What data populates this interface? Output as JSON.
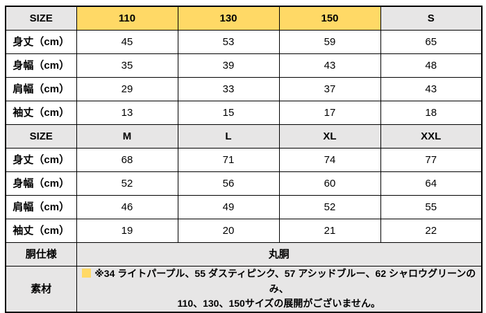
{
  "colors": {
    "highlight_yellow": "#FFD966",
    "header_gray": "#E7E6E6",
    "border": "#000000",
    "text": "#000000"
  },
  "table": {
    "rows": [
      {
        "type": "size-header",
        "label": "SIZE",
        "values": [
          "110",
          "130",
          "150",
          "S"
        ]
      },
      {
        "type": "measure",
        "label": "身丈（cm）",
        "values": [
          "45",
          "53",
          "59",
          "65"
        ]
      },
      {
        "type": "measure",
        "label": "身幅（cm）",
        "values": [
          "35",
          "39",
          "43",
          "48"
        ]
      },
      {
        "type": "measure",
        "label": "肩幅（cm）",
        "values": [
          "29",
          "33",
          "37",
          "43"
        ]
      },
      {
        "type": "measure",
        "label": "袖丈（cm）",
        "values": [
          "13",
          "15",
          "17",
          "18"
        ]
      },
      {
        "type": "size-header",
        "label": "SIZE",
        "values": [
          "M",
          "L",
          "XL",
          "XXL"
        ]
      },
      {
        "type": "measure",
        "label": "身丈（cm）",
        "values": [
          "68",
          "71",
          "74",
          "77"
        ]
      },
      {
        "type": "measure",
        "label": "身幅（cm）",
        "values": [
          "52",
          "56",
          "60",
          "64"
        ]
      },
      {
        "type": "measure",
        "label": "肩幅（cm）",
        "values": [
          "46",
          "49",
          "52",
          "55"
        ]
      },
      {
        "type": "measure",
        "label": "袖丈（cm）",
        "values": [
          "19",
          "20",
          "21",
          "22"
        ]
      },
      {
        "type": "spec",
        "label": "胴仕様",
        "value": "丸胴"
      },
      {
        "type": "material",
        "label": "素材",
        "note_line1": "※34 ライトパープル、55 ダスティピンク、57 アシッドブルー、62 シャロウグリーンのみ、",
        "note_line2": "110、130、150サイズの展開がございません。"
      }
    ]
  }
}
